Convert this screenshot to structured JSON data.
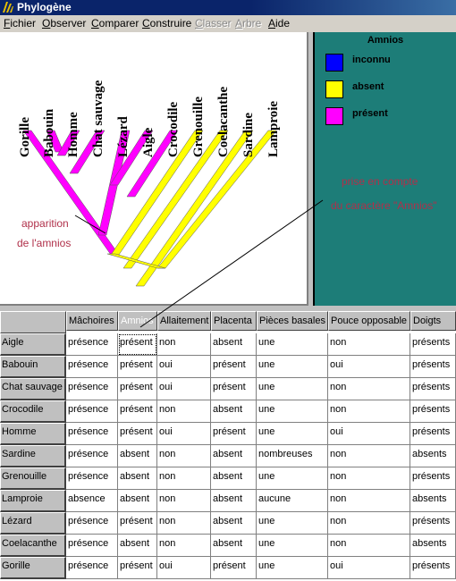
{
  "window": {
    "title": "Phylogène"
  },
  "menu": [
    {
      "label": "Fichier",
      "enabled": true
    },
    {
      "label": "Observer",
      "enabled": true
    },
    {
      "label": "Comparer",
      "enabled": true
    },
    {
      "label": "Construire",
      "enabled": true
    },
    {
      "label": "Classer",
      "enabled": false
    },
    {
      "label": "Arbre",
      "enabled": false
    },
    {
      "label": "Aide",
      "enabled": true
    }
  ],
  "tree": {
    "species": [
      "Gorille",
      "Babouin",
      "Homme",
      "Chat sauvage",
      "Lézard",
      "Aigle",
      "Crocodile",
      "Grenouille",
      "Coelacanthe",
      "Sardine",
      "Lamproie"
    ],
    "character_state": [
      "present",
      "present",
      "present",
      "present",
      "present",
      "present",
      "present",
      "absent",
      "absent",
      "absent",
      "absent"
    ],
    "annotation_left": [
      "apparition",
      "de l'amnios"
    ],
    "annotation_right": [
      "prise en compte",
      "du caractère \"Amnios\""
    ]
  },
  "legend": {
    "title": "Amnios",
    "items": [
      {
        "label": "inconnu",
        "color": "#0000ff"
      },
      {
        "label": "absent",
        "color": "#ffff00"
      },
      {
        "label": "présent",
        "color": "#ff00ff"
      }
    ]
  },
  "colors": {
    "present": "#ff00ff",
    "absent": "#ffff00",
    "unknown": "#0000ff",
    "note": "#b0304a",
    "panel": "#1d7d78"
  },
  "table": {
    "columns": [
      "Mâchoires",
      "Amnios",
      "Allaitement",
      "Placenta",
      "Pièces basales",
      "Pouce opposable",
      "Doigts"
    ],
    "selected_column": "Amnios",
    "rows": [
      {
        "name": "Aigle",
        "cells": [
          "présence",
          "présent",
          "non",
          "absent",
          "une",
          "non",
          "présents"
        ]
      },
      {
        "name": "Babouin",
        "cells": [
          "présence",
          "présent",
          "oui",
          "présent",
          "une",
          "oui",
          "présents"
        ]
      },
      {
        "name": "Chat sauvage",
        "cells": [
          "présence",
          "présent",
          "oui",
          "présent",
          "une",
          "non",
          "présents"
        ]
      },
      {
        "name": "Crocodile",
        "cells": [
          "présence",
          "présent",
          "non",
          "absent",
          "une",
          "non",
          "présents"
        ]
      },
      {
        "name": "Homme",
        "cells": [
          "présence",
          "présent",
          "oui",
          "présent",
          "une",
          "oui",
          "présents"
        ]
      },
      {
        "name": "Sardine",
        "cells": [
          "présence",
          "absent",
          "non",
          "absent",
          "nombreuses",
          "non",
          "absents"
        ]
      },
      {
        "name": "Grenouille",
        "cells": [
          "présence",
          "absent",
          "non",
          "absent",
          "une",
          "non",
          "présents"
        ]
      },
      {
        "name": "Lamproie",
        "cells": [
          "absence",
          "absent",
          "non",
          "absent",
          "aucune",
          "non",
          "absents"
        ]
      },
      {
        "name": "Lézard",
        "cells": [
          "présence",
          "présent",
          "non",
          "absent",
          "une",
          "non",
          "présents"
        ]
      },
      {
        "name": "Coelacanthe",
        "cells": [
          "présence",
          "absent",
          "non",
          "absent",
          "une",
          "non",
          "absents"
        ]
      },
      {
        "name": "Gorille",
        "cells": [
          "présence",
          "présent",
          "oui",
          "présent",
          "une",
          "oui",
          "présents"
        ]
      }
    ]
  }
}
